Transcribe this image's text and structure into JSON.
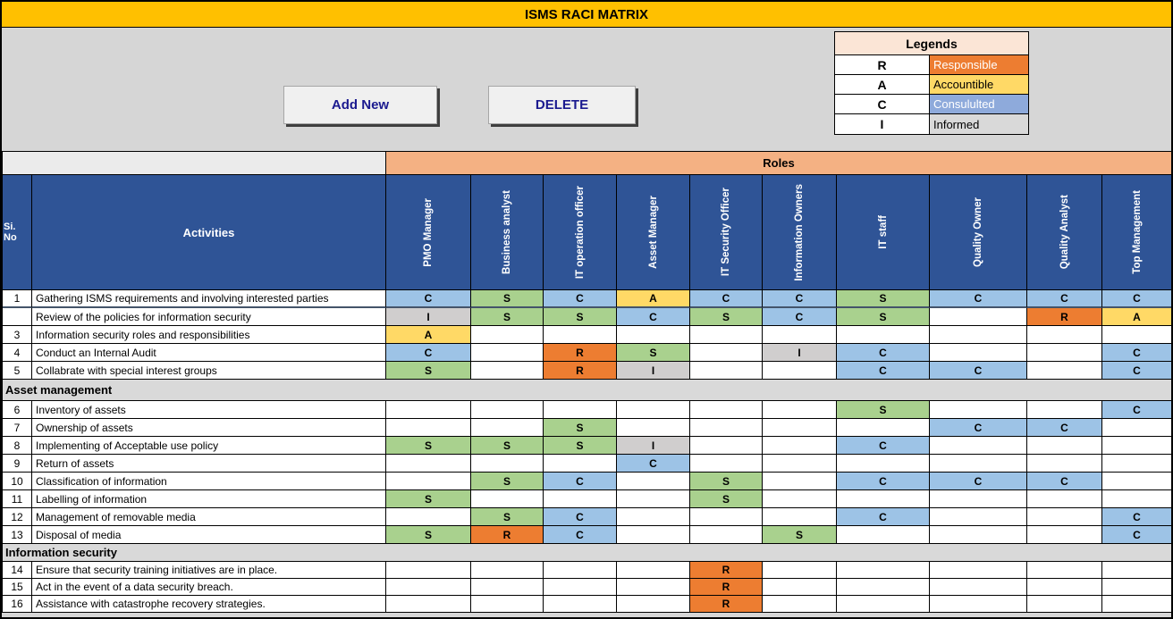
{
  "title": "ISMS RACI MATRIX",
  "toolbar": {
    "add_button": "Add New",
    "delete_button": "DELETE"
  },
  "legend": {
    "title": "Legends",
    "items": [
      {
        "letter": "R",
        "label": "Responsible",
        "color": "#ED7D31",
        "text_color": "#FFFFFF"
      },
      {
        "letter": "A",
        "label": "Accountible",
        "color": "#FFD966",
        "text_color": "#000000"
      },
      {
        "letter": "C",
        "label": "Consululted",
        "color": "#8EAADB",
        "text_color": "#FFFFFF"
      },
      {
        "letter": "I",
        "label": "Informed",
        "color": "#D9D9D9",
        "text_color": "#000000"
      }
    ]
  },
  "matrix": {
    "roles_header": "Roles",
    "col_headers": {
      "si_no": "Si. No",
      "activities": "Activities"
    },
    "roles": [
      "PMO Manager",
      "Business analyst",
      "IT operation officer",
      "Asset Manager",
      "IT Security Officer",
      "Information Owners",
      "IT staff",
      "Quality Owner",
      "Quality Analyst",
      "Top Management"
    ],
    "cell_colors": {
      "R": "#ED7D31",
      "A": "#FFD966",
      "C": "#9DC3E6",
      "S": "#A9D18E",
      "I": "#D0CECE"
    },
    "rows": [
      {
        "type": "row",
        "no": "1",
        "activity": "Gathering ISMS requirements and involving interested parties",
        "cells": [
          "C",
          "S",
          "C",
          "A",
          "C",
          "C",
          "S",
          "C",
          "C",
          "C"
        ],
        "divider": true
      },
      {
        "type": "row",
        "no": "",
        "activity": "Review of the policies for information security",
        "cells": [
          "I",
          "S",
          "S",
          "C",
          "S",
          "C",
          "S",
          "",
          "R",
          "A"
        ]
      },
      {
        "type": "row",
        "no": "3",
        "activity": "Information security roles and responsibilities",
        "cells": [
          "A",
          "",
          "",
          "",
          "",
          "",
          "",
          "",
          "",
          ""
        ]
      },
      {
        "type": "row",
        "no": "4",
        "activity": "Conduct an Internal Audit",
        "cells": [
          "C",
          "",
          "R",
          "S",
          "",
          "I",
          "C",
          "",
          "",
          "C"
        ]
      },
      {
        "type": "row",
        "no": "5",
        "activity": "Collabrate with special interest groups",
        "cells": [
          "S",
          "",
          "R",
          "I",
          "",
          "",
          "C",
          "C",
          "",
          "C"
        ]
      },
      {
        "type": "section",
        "label": "Asset management"
      },
      {
        "type": "row",
        "no": "6",
        "activity": "Inventory of assets",
        "cells": [
          "",
          "",
          "",
          "",
          "",
          "",
          "S",
          "",
          "",
          "C"
        ]
      },
      {
        "type": "row",
        "no": "7",
        "activity": "Ownership of assets",
        "cells": [
          "",
          "",
          "S",
          "",
          "",
          "",
          "",
          "C",
          "C",
          ""
        ]
      },
      {
        "type": "row",
        "no": "8",
        "activity": "Implementing of Acceptable use policy",
        "cells": [
          "S",
          "S",
          "S",
          "I",
          "",
          "",
          "C",
          "",
          "",
          ""
        ]
      },
      {
        "type": "row",
        "no": "9",
        "activity": "Return of assets",
        "cells": [
          "",
          "",
          "",
          "C",
          "",
          "",
          "",
          "",
          "",
          ""
        ]
      },
      {
        "type": "row",
        "no": "10",
        "activity": "Classification of information",
        "cells": [
          "",
          "S",
          "C",
          "",
          "S",
          "",
          "C",
          "C",
          "C",
          ""
        ]
      },
      {
        "type": "row",
        "no": "11",
        "activity": "Labelling of information",
        "cells": [
          "S",
          "",
          "",
          "",
          "S",
          "",
          "",
          "",
          "",
          ""
        ]
      },
      {
        "type": "row",
        "no": "12",
        "activity": "Management of removable media",
        "cells": [
          "",
          "S",
          "C",
          "",
          "",
          "",
          "C",
          "",
          "",
          "C"
        ]
      },
      {
        "type": "row",
        "no": "13",
        "activity": "Disposal of media",
        "cells": [
          "S",
          "R",
          "C",
          "",
          "",
          "S",
          "",
          "",
          "",
          "C"
        ]
      },
      {
        "type": "section",
        "label": "Information security"
      },
      {
        "type": "row",
        "no": "14",
        "activity": "Ensure that security training initiatives are in place.",
        "cells": [
          "",
          "",
          "",
          "",
          "R",
          "",
          "",
          "",
          "",
          ""
        ]
      },
      {
        "type": "row",
        "no": "15",
        "activity": "Act in the event of a data security breach.",
        "cells": [
          "",
          "",
          "",
          "",
          "R",
          "",
          "",
          "",
          "",
          ""
        ]
      },
      {
        "type": "row",
        "no": "16",
        "activity": "Assistance with catastrophe recovery strategies.",
        "cells": [
          "",
          "",
          "",
          "",
          "R",
          "",
          "",
          "",
          "",
          ""
        ]
      }
    ]
  }
}
